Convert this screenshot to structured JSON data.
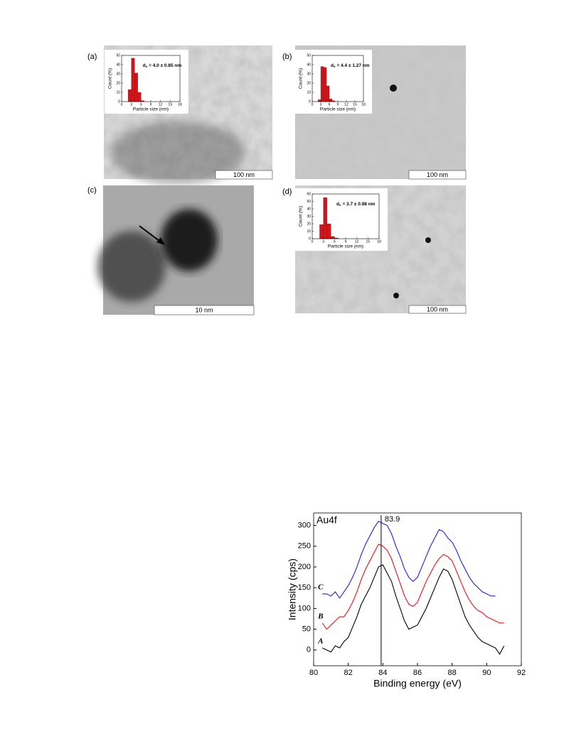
{
  "panels": [
    {
      "label": "(a)",
      "scale_bar": "100 nm",
      "inset": {
        "type": "histogram",
        "symbol": "d",
        "subscript": "s",
        "annotation": "= 4.0 ± 0.85 nm",
        "xlabel": "Particle size (nm)",
        "ylabel": "Count (%)",
        "color": "#d0161b",
        "bins": [
          2,
          3,
          4,
          5,
          6,
          7
        ],
        "counts": [
          13,
          47,
          31,
          10,
          1
        ],
        "xlim": [
          0,
          18
        ],
        "xticks": [
          0,
          3,
          6,
          9,
          12,
          15,
          18
        ],
        "ylim": [
          0,
          50
        ],
        "yticks": [
          0,
          10,
          20,
          30,
          40,
          50
        ]
      }
    },
    {
      "label": "(b)",
      "scale_bar": "100 nm",
      "inset": {
        "type": "histogram",
        "symbol": "d",
        "subscript": "s",
        "annotation": "= 4.4 ± 1.27 nm",
        "xlabel": "Particle size (nm)",
        "ylabel": "Count (%)",
        "color": "#d0161b",
        "bins": [
          2,
          3,
          4,
          5,
          6,
          7,
          8
        ],
        "counts": [
          2,
          38,
          37,
          17,
          3,
          1
        ],
        "xlim": [
          0,
          18
        ],
        "xticks": [
          0,
          3,
          6,
          9,
          12,
          15,
          18
        ],
        "ylim": [
          0,
          50
        ],
        "yticks": [
          0,
          10,
          20,
          30,
          40,
          50
        ]
      }
    },
    {
      "label": "(c)",
      "scale_bar": "10 nm"
    },
    {
      "label": "(d)",
      "scale_bar": "100 nm",
      "inset": {
        "type": "histogram",
        "symbol": "d",
        "subscript": "s",
        "annotation": "= 3.7 ± 0.98 nm",
        "xlabel": "Particle size (nm)",
        "ylabel": "Count (%)",
        "color": "#d0161b",
        "bins": [
          2,
          3,
          4,
          5,
          6,
          7
        ],
        "counts": [
          19,
          55,
          20,
          3,
          1
        ],
        "xlim": [
          0,
          18
        ],
        "xticks": [
          0,
          3,
          6,
          9,
          12,
          15,
          18
        ],
        "ylim": [
          0,
          60
        ],
        "yticks": [
          0,
          10,
          20,
          30,
          40,
          50,
          60
        ]
      }
    }
  ],
  "chart_data": {
    "type": "line",
    "annotation": "Au4f",
    "marker": 83.9,
    "xlabel": "Binding energy (eV)",
    "ylabel": "Intensity (cps)",
    "x": [
      80.5,
      80.75,
      81,
      81.25,
      81.5,
      81.75,
      82,
      82.25,
      82.5,
      82.75,
      83,
      83.25,
      83.5,
      83.75,
      84,
      84.25,
      84.5,
      84.75,
      85,
      85.25,
      85.5,
      85.75,
      86,
      86.25,
      86.5,
      86.75,
      87,
      87.25,
      87.5,
      87.75,
      88,
      88.25,
      88.5,
      88.75,
      89,
      89.25,
      89.5,
      89.75,
      90,
      90.25,
      90.5,
      90.75,
      91
    ],
    "series": [
      {
        "name": "A",
        "color": "#000000",
        "values": [
          5,
          0,
          -5,
          10,
          5,
          20,
          30,
          55,
          80,
          110,
          130,
          150,
          175,
          200,
          205,
          185,
          165,
          130,
          100,
          70,
          50,
          55,
          60,
          80,
          100,
          125,
          150,
          175,
          195,
          190,
          170,
          140,
          110,
          80,
          60,
          45,
          30,
          20,
          15,
          10,
          5,
          -10,
          10
        ]
      },
      {
        "name": "B",
        "color": "#e8141b",
        "values": [
          65,
          50,
          60,
          70,
          80,
          80,
          95,
          115,
          140,
          170,
          195,
          215,
          235,
          255,
          250,
          240,
          220,
          190,
          160,
          130,
          110,
          105,
          115,
          140,
          165,
          185,
          205,
          220,
          230,
          225,
          215,
          190,
          165,
          140,
          120,
          105,
          95,
          90,
          80,
          75,
          70,
          65,
          65
        ]
      },
      {
        "name": "C",
        "color": "#1f1fe6",
        "values": [
          135,
          135,
          130,
          140,
          125,
          140,
          155,
          175,
          200,
          230,
          255,
          275,
          295,
          310,
          305,
          300,
          280,
          250,
          225,
          195,
          175,
          165,
          175,
          200,
          225,
          250,
          270,
          290,
          285,
          270,
          260,
          240,
          215,
          195,
          175,
          160,
          150,
          140,
          135,
          130,
          130,
          null,
          null
        ]
      }
    ],
    "xlim": [
      80,
      92
    ],
    "xticks": [
      80,
      82,
      84,
      86,
      88,
      90,
      92
    ],
    "ylim": [
      -38,
      330
    ],
    "yticks": [
      0,
      50,
      100,
      150,
      200,
      250,
      300
    ]
  }
}
